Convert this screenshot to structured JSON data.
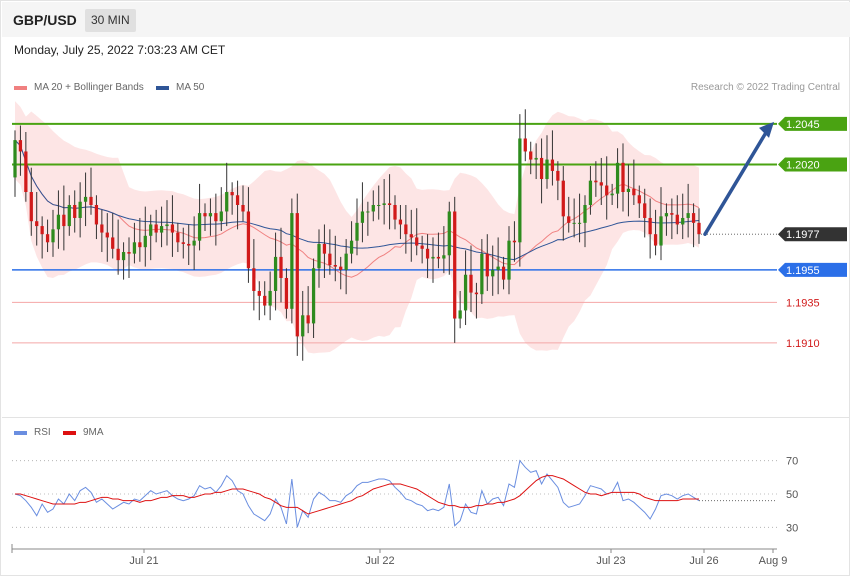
{
  "header": {
    "symbol": "GBP/USD",
    "interval": "30 MIN"
  },
  "timestamp": "Monday, July 25, 2022 7:03:23 AM CET",
  "credit": "Research © 2022 Trading Central",
  "legend": {
    "ma20": "MA 20 + Bollinger Bands",
    "ma50": "MA 50",
    "rsi": "RSI",
    "ma9": "9MA"
  },
  "colors": {
    "bull": "#2e8b1e",
    "bear": "#d11a1a",
    "bands": "#fde0e0",
    "ma20": "#f08080",
    "ma50": "#2f5597",
    "resistance": "#4aa312",
    "support": "#2b6fe8",
    "target": "#f4a6a6",
    "price_tag": "#333333",
    "arrow": "#2f5597",
    "rsi": "#6a8ee0",
    "rsi_ma": "#dd1111"
  },
  "chart_data": [
    {
      "type": "candlestick",
      "title": "GBP/USD",
      "interval": "30 MIN",
      "ylim": [
        1.1868,
        1.2085
      ],
      "x_ticks": [
        "Jul 21",
        "Jul 22",
        "Jul 23",
        "Jul 26",
        "Aug 9"
      ],
      "current_price": 1.1977,
      "levels": [
        {
          "value": 1.2045,
          "label": "1.2045",
          "kind": "resistance"
        },
        {
          "value": 1.202,
          "label": "1.2020",
          "kind": "resistance"
        },
        {
          "value": 1.1977,
          "label": "1.1977",
          "kind": "current"
        },
        {
          "value": 1.1955,
          "label": "1.1955",
          "kind": "support"
        },
        {
          "value": 1.1935,
          "label": "1.1935",
          "kind": "target"
        },
        {
          "value": 1.191,
          "label": "1.1910",
          "kind": "target"
        }
      ],
      "forecast_arrow": {
        "from": 1.1977,
        "to": 1.2045,
        "direction": "up"
      },
      "series": [
        {
          "name": "MA 20 + Bollinger Bands",
          "kind": "band"
        },
        {
          "name": "MA 50",
          "kind": "line"
        }
      ],
      "candles_close": [
        1.2035,
        1.2028,
        1.2003,
        1.1985,
        1.1982,
        1.1977,
        1.1972,
        1.198,
        1.1989,
        1.1982,
        1.1995,
        1.1987,
        1.1997,
        1.2,
        1.1995,
        1.1983,
        1.1978,
        1.1975,
        1.1968,
        1.1961,
        1.1966,
        1.1965,
        1.1972,
        1.1969,
        1.1976,
        1.1983,
        1.1978,
        1.1982,
        1.1983,
        1.1978,
        1.1972,
        1.1971,
        1.197,
        1.1973,
        1.199,
        1.1988,
        1.199,
        1.1985,
        1.1991,
        1.2003,
        1.2001,
        1.1995,
        1.1991,
        1.1956,
        1.1942,
        1.1939,
        1.1933,
        1.1942,
        1.1963,
        1.195,
        1.1931,
        1.199,
        1.1914,
        1.1927,
        1.1922,
        1.1956,
        1.1971,
        1.1965,
        1.1958,
        1.1957,
        1.1955,
        1.1965,
        1.1973,
        1.1984,
        1.1991,
        1.1991,
        1.1995,
        1.1995,
        1.1996,
        1.1995,
        1.1986,
        1.1983,
        1.1977,
        1.1975,
        1.197,
        1.1968,
        1.1962,
        1.1963,
        1.1962,
        1.1964,
        1.1991,
        1.1925,
        1.193,
        1.1952,
        1.1941,
        1.194,
        1.1965,
        1.1951,
        1.1955,
        1.1957,
        1.1949,
        1.1973,
        1.1972,
        1.2036,
        1.2028,
        1.2023,
        1.2024,
        1.2011,
        1.2023,
        1.2016,
        1.201,
        1.1988,
        1.1984,
        1.1984,
        1.1984,
        1.1995,
        1.201,
        1.2009,
        1.2007,
        1.2001,
        1.2002,
        1.2021,
        1.2003,
        1.2005,
        1.2001,
        1.1996,
        1.1987,
        1.1977,
        1.197,
        1.1988,
        1.199,
        1.1989,
        1.1983,
        1.1987,
        1.199,
        1.1984,
        1.1977
      ],
      "candles_open": [
        1.2012,
        1.2035,
        1.2028,
        1.2003,
        1.1985,
        1.1982,
        1.1977,
        1.1972,
        1.198,
        1.1989,
        1.1982,
        1.1995,
        1.1987,
        1.1997,
        1.2,
        1.1995,
        1.1983,
        1.1978,
        1.1975,
        1.1968,
        1.1961,
        1.1966,
        1.1965,
        1.1972,
        1.1969,
        1.1976,
        1.1983,
        1.1978,
        1.1982,
        1.1983,
        1.1978,
        1.1972,
        1.1971,
        1.197,
        1.1973,
        1.199,
        1.1988,
        1.199,
        1.1985,
        1.1991,
        1.2003,
        1.2001,
        1.1995,
        1.1991,
        1.1956,
        1.1942,
        1.1939,
        1.1933,
        1.1942,
        1.1963,
        1.195,
        1.1931,
        1.199,
        1.1914,
        1.1927,
        1.1922,
        1.1956,
        1.1971,
        1.1965,
        1.1958,
        1.1957,
        1.1955,
        1.1965,
        1.1973,
        1.1984,
        1.1991,
        1.1991,
        1.1995,
        1.1995,
        1.1996,
        1.1995,
        1.1986,
        1.1983,
        1.1977,
        1.1975,
        1.197,
        1.1968,
        1.1962,
        1.1963,
        1.1962,
        1.1964,
        1.1991,
        1.1925,
        1.193,
        1.1952,
        1.1941,
        1.194,
        1.1965,
        1.1951,
        1.1955,
        1.1957,
        1.1949,
        1.1973,
        1.1972,
        1.2036,
        1.2028,
        1.2023,
        1.2024,
        1.2011,
        1.2023,
        1.2016,
        1.201,
        1.1988,
        1.1984,
        1.1984,
        1.1984,
        1.1995,
        1.201,
        1.2009,
        1.2007,
        1.2001,
        1.2002,
        1.2021,
        1.2003,
        1.2005,
        1.2001,
        1.1996,
        1.1987,
        1.1977,
        1.197,
        1.1988,
        1.199,
        1.1989,
        1.1983,
        1.1987,
        1.199,
        1.1984
      ]
    },
    {
      "type": "line",
      "title": "RSI",
      "ylim": [
        20,
        80
      ],
      "y_ticks": [
        70,
        50,
        30
      ],
      "series": [
        {
          "name": "RSI",
          "values": [
            50,
            49,
            46,
            42,
            37,
            44,
            39,
            41,
            47,
            44,
            50,
            46,
            52,
            54,
            51,
            45,
            47,
            44,
            41,
            43,
            45,
            44,
            47,
            46,
            49,
            52,
            50,
            51,
            52,
            49,
            47,
            46,
            47,
            49,
            55,
            53,
            54,
            51,
            55,
            61,
            58,
            52,
            50,
            43,
            38,
            36,
            34,
            38,
            47,
            42,
            32,
            59,
            30,
            40,
            36,
            47,
            51,
            49,
            46,
            46,
            45,
            49,
            51,
            55,
            57,
            57,
            58,
            59,
            59,
            58,
            54,
            51,
            47,
            46,
            44,
            43,
            40,
            41,
            40,
            42,
            56,
            31,
            34,
            44,
            39,
            38,
            52,
            44,
            47,
            48,
            43,
            56,
            54,
            70,
            66,
            63,
            64,
            56,
            62,
            58,
            54,
            45,
            42,
            43,
            44,
            49,
            55,
            54,
            53,
            50,
            51,
            57,
            46,
            47,
            45,
            42,
            39,
            35,
            41,
            49,
            50,
            49,
            47,
            49,
            50,
            48,
            46
          ]
        },
        {
          "name": "9MA",
          "values": [
            50,
            50,
            49,
            48,
            47,
            46,
            45,
            44,
            44,
            44,
            44,
            44,
            45,
            45,
            46,
            47,
            48,
            48,
            47,
            47,
            46,
            46,
            46,
            45,
            46,
            46,
            47,
            48,
            48,
            49,
            49,
            49,
            48,
            48,
            49,
            50,
            50,
            51,
            51,
            52,
            53,
            53,
            53,
            52,
            51,
            50,
            48,
            47,
            45,
            43,
            42,
            42,
            42,
            40,
            38,
            39,
            40,
            41,
            42,
            43,
            44,
            45,
            46,
            48,
            49,
            51,
            53,
            54,
            55,
            56,
            56,
            56,
            55,
            54,
            53,
            51,
            49,
            47,
            45,
            44,
            43,
            43,
            42,
            42,
            42,
            43,
            43,
            44,
            44,
            45,
            45,
            46,
            47,
            49,
            52,
            55,
            58,
            60,
            61,
            61,
            60,
            59,
            57,
            55,
            53,
            51,
            50,
            50,
            49,
            50,
            51,
            51,
            51,
            51,
            51,
            50,
            48,
            47,
            46,
            46,
            46,
            46,
            46,
            47,
            47,
            47,
            47
          ]
        }
      ]
    }
  ]
}
